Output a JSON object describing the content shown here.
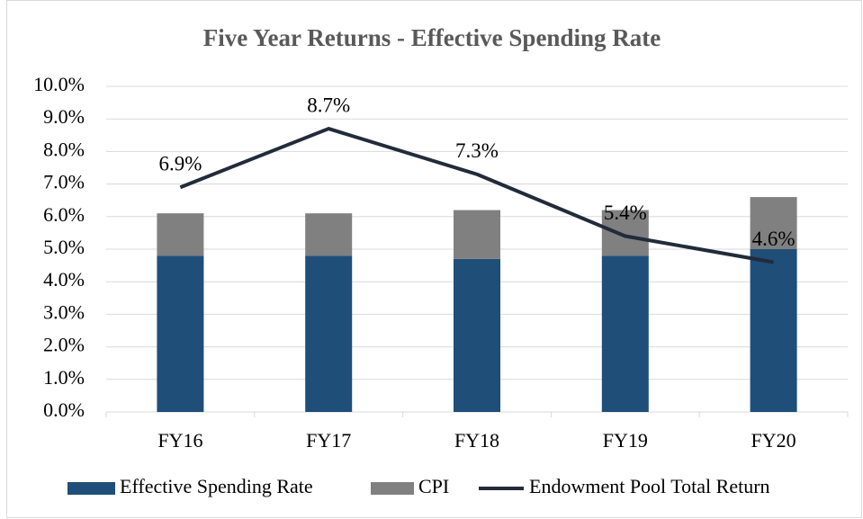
{
  "chart_data": {
    "type": "bar+line",
    "title": "Five Year Returns - Effective Spending Rate",
    "categories": [
      "FY16",
      "FY17",
      "FY18",
      "FY19",
      "FY20"
    ],
    "series": [
      {
        "name": "Effective Spending Rate",
        "type": "bar",
        "color": "#1f4e79",
        "values": [
          4.8,
          4.8,
          4.7,
          4.8,
          5.0
        ]
      },
      {
        "name": "CPI",
        "type": "bar",
        "color": "#808080",
        "values": [
          1.3,
          1.3,
          1.5,
          1.4,
          1.6
        ]
      },
      {
        "name": "Endowment Pool Total Return",
        "type": "line",
        "color": "#222b3a",
        "values": [
          6.9,
          8.7,
          7.3,
          5.4,
          4.6
        ],
        "value_labels": [
          "6.9%",
          "8.7%",
          "7.3%",
          "5.4%",
          "4.6%"
        ]
      }
    ],
    "stacked": true,
    "ylim": [
      0,
      10
    ],
    "yticks": [
      {
        "value": 0,
        "label": "0.0%"
      },
      {
        "value": 1,
        "label": "1.0%"
      },
      {
        "value": 2,
        "label": "2.0%"
      },
      {
        "value": 3,
        "label": "3.0%"
      },
      {
        "value": 4,
        "label": "4.0%"
      },
      {
        "value": 5,
        "label": "5.0%"
      },
      {
        "value": 6,
        "label": "6.0%"
      },
      {
        "value": 7,
        "label": "7.0%"
      },
      {
        "value": 8,
        "label": "8.0%"
      },
      {
        "value": 9,
        "label": "9.0%"
      },
      {
        "value": 10,
        "label": "10.0%"
      }
    ],
    "grid": true,
    "legend": "bottom"
  }
}
